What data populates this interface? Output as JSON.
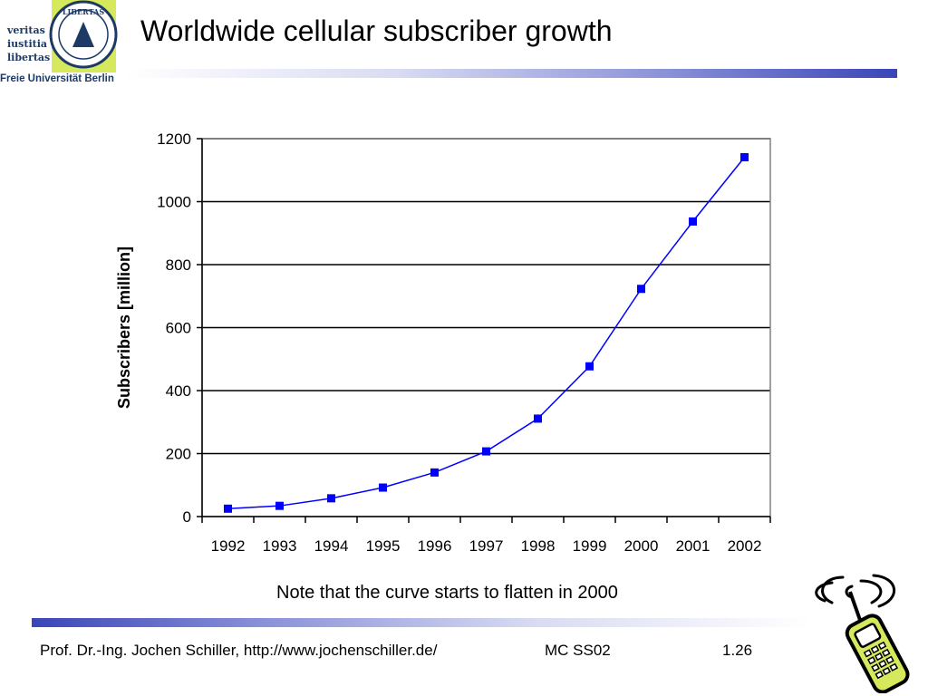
{
  "logo": {
    "motto_lines": [
      "veritas",
      "iustitia",
      "libertas"
    ],
    "seal_text": "LIBERTAS",
    "university": "Freie Universität Berlin"
  },
  "slide": {
    "title": "Worldwide cellular subscriber growth",
    "note": "Note that the curve starts to flatten in 2000",
    "accent_color": "#3a45b8"
  },
  "footer": {
    "author": "Prof. Dr.-Ing. Jochen Schiller, http://www.jochenschiller.de/",
    "course": "MC SS02",
    "page": "1.26"
  },
  "chart_data": {
    "type": "line",
    "title": "",
    "xlabel": "",
    "ylabel": "Subscribers [million]",
    "categories": [
      "1992",
      "1993",
      "1994",
      "1995",
      "1996",
      "1997",
      "1998",
      "1999",
      "2000",
      "2001",
      "2002"
    ],
    "series": [
      {
        "values": [
          25,
          34,
          58,
          92,
          140,
          207,
          311,
          477,
          723,
          937,
          1141
        ],
        "color": "#0000ff",
        "marker": "square"
      }
    ],
    "ylim": [
      0,
      1200
    ],
    "yticks": [
      0,
      200,
      400,
      600,
      800,
      1000,
      1200
    ],
    "grid": "horizontal",
    "legend": "none"
  },
  "decoration": {
    "phone_icon": "cell-phone-icon"
  }
}
